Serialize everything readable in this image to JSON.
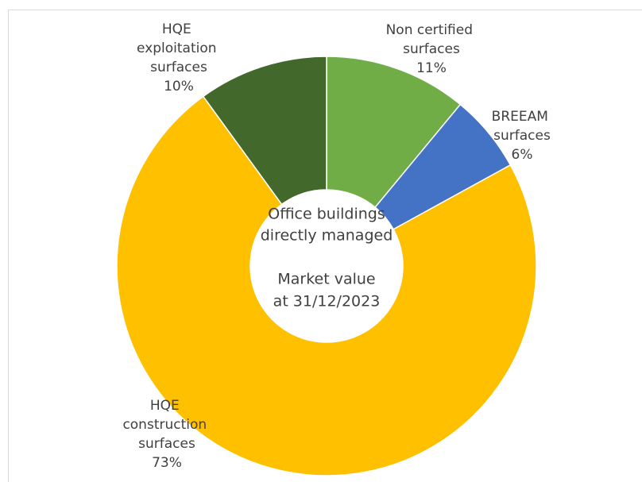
{
  "chart_data": {
    "type": "donut",
    "categories": [
      "Non certified surfaces",
      "BREEAM surfaces",
      "HQE construction surfaces",
      "HQE exploitation surfaces"
    ],
    "values": [
      11,
      6,
      73,
      10
    ],
    "value_labels": [
      "11%",
      "6%",
      "73%",
      "10%"
    ],
    "colors": [
      "#70ad47",
      "#4472c4",
      "#ffc000",
      "#43682b"
    ],
    "annotations": [
      "Office buildings",
      "directly managed",
      "Market value",
      "at 31/12/2023"
    ]
  }
}
